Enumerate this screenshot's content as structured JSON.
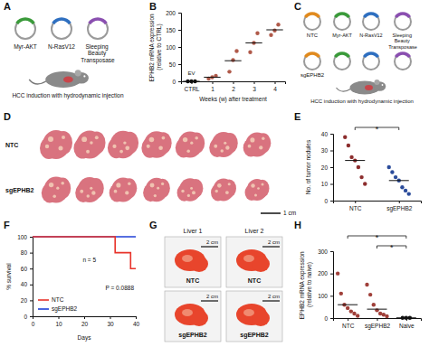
{
  "panel_labels": [
    "A",
    "B",
    "C",
    "D",
    "E",
    "F",
    "G",
    "H"
  ],
  "panel_a": {
    "plasmids": [
      "Myr-AKT",
      "N-RasV12",
      "Sleeping Beauty Transposase"
    ],
    "caption": "HCC induction with hydrodynamic injection"
  },
  "panel_c": {
    "vectors": [
      "NTC",
      "sgEPHB2"
    ],
    "plasmids": [
      "Myr-AKT",
      "N-RasV12",
      "Sleeping Beauty Transposase"
    ],
    "caption": "HCC induction with hydrodynamic injection"
  },
  "panel_d": {
    "rows": [
      "NTC",
      "sgEPHB2"
    ],
    "scale_bar": "1 cm"
  },
  "panel_g": {
    "columns": [
      "Liver 1",
      "Liver 2"
    ],
    "rows": [
      "NTC",
      "sgEPHB2"
    ],
    "scale_bar": "2 cm"
  },
  "chart_data": [
    {
      "type": "strip",
      "x_label": "Weeks (w) after treatment",
      "y_label": "EPHB2 mRNA expression (relative to CTRL)",
      "categories": [
        "CTRL",
        "1",
        "2",
        "3",
        "4"
      ],
      "values": [
        [
          0,
          0,
          0
        ],
        [
          8,
          12,
          16
        ],
        [
          28,
          62,
          88
        ],
        [
          85,
          112,
          140
        ],
        [
          135,
          148,
          165
        ]
      ],
      "means": [
        0,
        12,
        60,
        112,
        150
      ],
      "colors": [
        "#111111",
        "#b05a4a",
        "#b05a4a",
        "#b05a4a",
        "#b05a4a"
      ],
      "ylim": [
        0,
        200
      ],
      "yticks": [
        0,
        50,
        100,
        150,
        200
      ],
      "annotations": [
        "EV"
      ]
    },
    {
      "type": "strip",
      "y_label": "No. of tumor nodules",
      "categories": [
        "NTC",
        "sgEPHB2"
      ],
      "values": [
        [
          38,
          33,
          26,
          24,
          20,
          14,
          10
        ],
        [
          20,
          17,
          14,
          12,
          8,
          6,
          4
        ]
      ],
      "means": [
        24,
        12
      ],
      "colors": [
        "#8c2d2d",
        "#2b4c9b"
      ],
      "ylim": [
        0,
        40
      ],
      "yticks": [
        0,
        10,
        20,
        30,
        40
      ],
      "comparisons": [
        {
          "from": "NTC",
          "to": "sgEPHB2",
          "label": "*"
        }
      ]
    },
    {
      "type": "line",
      "x_label": "Days",
      "y_label": "% survival",
      "xlim": [
        0,
        40
      ],
      "xticks": [
        0,
        10,
        20,
        30,
        40
      ],
      "ylim": [
        0,
        100
      ],
      "yticks": [
        0,
        20,
        40,
        60,
        80,
        100
      ],
      "series": [
        {
          "name": "NTC",
          "color": "#e8332a",
          "x": [
            0,
            32,
            38,
            40
          ],
          "values": [
            100,
            80,
            60,
            60
          ],
          "line_style": "step"
        },
        {
          "name": "sgEPHB2",
          "color": "#1f3fd6",
          "x": [
            0,
            40
          ],
          "values": [
            100,
            100
          ],
          "line_style": "step"
        }
      ],
      "legend": "lower left",
      "annotations": [
        "n = 5",
        "P = 0.0888"
      ]
    },
    {
      "type": "strip",
      "y_label": "EPHB2 mRNA expression (relative to naive)",
      "categories": [
        "NTC",
        "sgEPHB2",
        "Naive"
      ],
      "values": [
        [
          200,
          110,
          60,
          45,
          30,
          20,
          10
        ],
        [
          150,
          105,
          60,
          35,
          20,
          15,
          8
        ],
        [
          1,
          1,
          1
        ]
      ],
      "means": [
        60,
        40,
        1
      ],
      "colors": [
        "#a0403a",
        "#a0403a",
        "#111111"
      ],
      "ylim": [
        0,
        300
      ],
      "yticks": [
        0,
        100,
        200,
        300
      ],
      "comparisons": [
        {
          "from": "NTC",
          "to": "Naive",
          "label": "*"
        },
        {
          "from": "sgEPHB2",
          "to": "Naive",
          "label": "*"
        }
      ]
    }
  ]
}
